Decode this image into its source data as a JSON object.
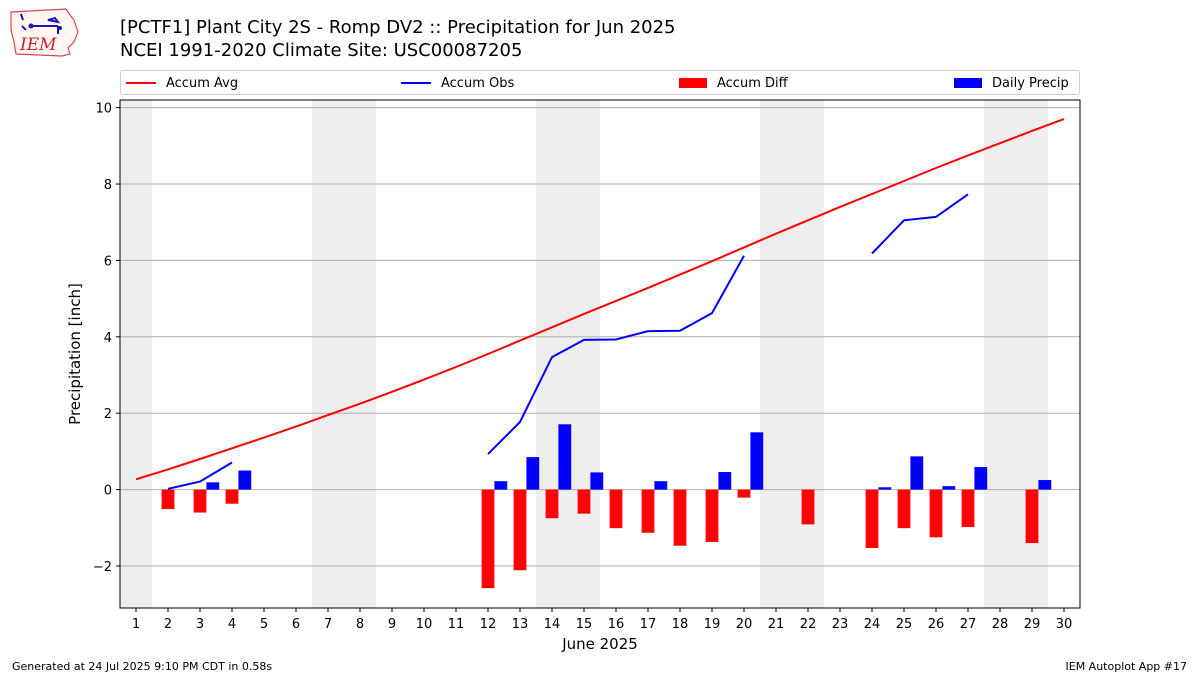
{
  "logo": {
    "text": "IEM",
    "icon": "iowa-state-outline-logo"
  },
  "header": {
    "title_line1": "[PCTF1] Plant City 2S - Romp DV2 :: Precipitation for Jun 2025",
    "title_line2": "NCEI 1991-2020 Climate Site: USC00087205"
  },
  "footer": {
    "left": "Generated at 24 Jul 2025 9:10 PM CDT in 0.58s",
    "right": "IEM Autoplot App #17"
  },
  "colors": {
    "avg": "#ff0000",
    "obs": "#0000ff",
    "diff": "#ff0000",
    "daily": "#0000ff",
    "weekend_band": "#eeeeee",
    "grid": "#b0b0b0"
  },
  "chart_data": {
    "type": "bar",
    "title": "[PCTF1] Plant City 2S - Romp DV2 :: Precipitation for Jun 2025",
    "xlabel": "June 2025",
    "ylabel": "Precipitation [inch]",
    "xlim": [
      0.5,
      30.5
    ],
    "ylim": [
      -3.1,
      10.2
    ],
    "yticks": [
      -2,
      0,
      2,
      4,
      6,
      8,
      10
    ],
    "ytick_labels": [
      "−2",
      "0",
      "2",
      "4",
      "6",
      "8",
      "10"
    ],
    "days": [
      1,
      2,
      3,
      4,
      5,
      6,
      7,
      8,
      9,
      10,
      11,
      12,
      13,
      14,
      15,
      16,
      17,
      18,
      19,
      20,
      21,
      22,
      23,
      24,
      25,
      26,
      27,
      28,
      29,
      30
    ],
    "shaded_days": [
      1,
      7,
      8,
      14,
      15,
      21,
      22,
      28,
      29
    ],
    "grid": "horizontal",
    "legend_position": "top",
    "legend": [
      "Accum Avg",
      "Accum Obs",
      "Accum Diff",
      "Daily Precip"
    ],
    "series": [
      {
        "name": "Accum Avg",
        "kind": "line",
        "values": [
          0.27,
          0.53,
          0.8,
          1.08,
          1.36,
          1.65,
          1.95,
          2.25,
          2.56,
          2.88,
          3.21,
          3.55,
          3.9,
          4.25,
          4.6,
          4.94,
          5.28,
          5.63,
          5.98,
          6.34,
          6.7,
          7.05,
          7.4,
          7.74,
          8.08,
          8.42,
          8.75,
          9.07,
          9.39,
          9.7
        ]
      },
      {
        "name": "Accum Obs",
        "kind": "line",
        "values": [
          null,
          0.02,
          0.21,
          0.71,
          null,
          null,
          null,
          null,
          null,
          null,
          null,
          0.93,
          1.77,
          3.47,
          3.92,
          3.93,
          4.15,
          4.16,
          4.62,
          6.12,
          null,
          null,
          null,
          6.18,
          7.05,
          7.14,
          7.73,
          null,
          null,
          null
        ]
      },
      {
        "name": "Accum Diff",
        "kind": "bar",
        "values": [
          null,
          -0.51,
          -0.6,
          -0.37,
          null,
          null,
          null,
          null,
          null,
          null,
          null,
          -2.58,
          -2.11,
          -0.75,
          -0.63,
          -1.01,
          -1.13,
          -1.47,
          -1.37,
          -0.21,
          null,
          -0.91,
          null,
          -1.53,
          -1.01,
          -1.25,
          -0.98,
          null,
          -1.4,
          null
        ]
      },
      {
        "name": "Daily Precip",
        "kind": "bar",
        "values": [
          null,
          null,
          0.19,
          0.5,
          null,
          null,
          null,
          null,
          null,
          null,
          null,
          0.22,
          0.85,
          1.71,
          0.45,
          null,
          0.22,
          null,
          0.46,
          1.5,
          null,
          null,
          null,
          0.06,
          0.87,
          0.09,
          0.59,
          null,
          0.25,
          null
        ]
      }
    ]
  }
}
